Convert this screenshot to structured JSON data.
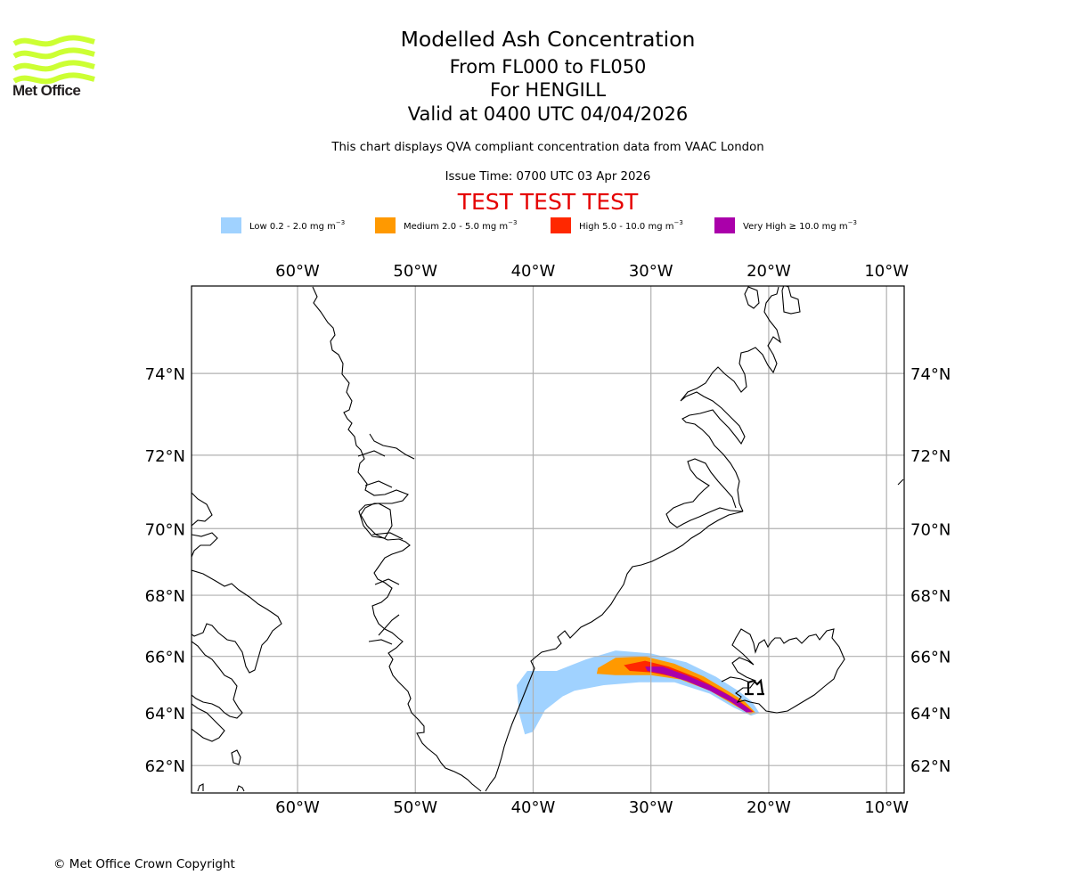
{
  "header": {
    "title": "Modelled Ash Concentration",
    "levels": "From FL000 to FL050",
    "volcano": "For HENGILL",
    "valid": "Valid at 0400 UTC 04/04/2026",
    "description": "This chart displays QVA compliant concentration data from VAAC London",
    "issue_time": "Issue Time: 0700 UTC 03 Apr 2026",
    "test_banner": "TEST TEST TEST"
  },
  "logo": {
    "text": "Met Office",
    "icon": "met-office-wave-logo",
    "color": "#ccff33"
  },
  "legend": [
    {
      "name": "Low",
      "label": "Low 0.2 - 2.0 mg m",
      "exp": "−3",
      "color": "#a0d2ff"
    },
    {
      "name": "Medium",
      "label": "Medium 2.0 - 5.0 mg m",
      "exp": "−3",
      "color": "#ff9900"
    },
    {
      "name": "High",
      "label": "High 5.0 - 10.0 mg m",
      "exp": "−3",
      "color": "#ff2800"
    },
    {
      "name": "Very High",
      "label": "Very High  ≥  10.0 mg m",
      "exp": "−3",
      "color": "#aa00aa"
    }
  ],
  "chart_data": {
    "type": "map",
    "projection": "latitude-longitude (Mercator-like)",
    "extent": {
      "lon": [
        -69,
        -8.5
      ],
      "lat": [
        60.9,
        75.9
      ]
    },
    "grid": true,
    "lon_ticks": [
      -60,
      -50,
      -40,
      -30,
      -20,
      -10
    ],
    "lon_tick_labels": [
      "60°W",
      "50°W",
      "40°W",
      "30°W",
      "20°W",
      "10°W"
    ],
    "lat_ticks": [
      62,
      64,
      66,
      68,
      70,
      72,
      74
    ],
    "lat_tick_labels": [
      "62°N",
      "64°N",
      "66°N",
      "68°N",
      "70°N",
      "72°N",
      "74°N"
    ],
    "volcano": {
      "name": "HENGILL",
      "lon": -21.3,
      "lat": 64.1,
      "icon": "volcano-marker-icon"
    },
    "ash_levels": [
      {
        "level": "Low",
        "color": "#a0d2ff",
        "polygon": [
          [
            -40.7,
            63.2
          ],
          [
            -41.2,
            64.0
          ],
          [
            -41.4,
            65.0
          ],
          [
            -40.5,
            65.5
          ],
          [
            -38.0,
            65.5
          ],
          [
            -35.5,
            65.9
          ],
          [
            -33.0,
            66.2
          ],
          [
            -30.0,
            66.1
          ],
          [
            -27.0,
            65.8
          ],
          [
            -24.5,
            65.3
          ],
          [
            -22.6,
            64.8
          ],
          [
            -21.4,
            64.4
          ],
          [
            -20.8,
            64.0
          ],
          [
            -21.5,
            63.9
          ],
          [
            -23.0,
            64.2
          ],
          [
            -25.0,
            64.7
          ],
          [
            -28.0,
            65.1
          ],
          [
            -31.0,
            65.1
          ],
          [
            -34.0,
            65.0
          ],
          [
            -36.5,
            64.8
          ],
          [
            -37.5,
            64.6
          ],
          [
            -39.0,
            64.1
          ],
          [
            -40.0,
            63.3
          ]
        ]
      },
      {
        "level": "Medium",
        "color": "#ff9900",
        "polygon": [
          [
            -34.5,
            65.6
          ],
          [
            -33.0,
            65.95
          ],
          [
            -30.5,
            66.0
          ],
          [
            -28.0,
            65.75
          ],
          [
            -25.5,
            65.3
          ],
          [
            -23.5,
            64.8
          ],
          [
            -22.0,
            64.4
          ],
          [
            -21.1,
            64.0
          ],
          [
            -21.6,
            63.95
          ],
          [
            -23.0,
            64.3
          ],
          [
            -25.0,
            64.8
          ],
          [
            -27.5,
            65.2
          ],
          [
            -30.0,
            65.35
          ],
          [
            -33.0,
            65.35
          ],
          [
            -34.6,
            65.4
          ]
        ]
      },
      {
        "level": "High",
        "color": "#ff2800",
        "polygon": [
          [
            -32.3,
            65.7
          ],
          [
            -30.5,
            65.85
          ],
          [
            -28.5,
            65.65
          ],
          [
            -26.0,
            65.25
          ],
          [
            -24.0,
            64.8
          ],
          [
            -22.4,
            64.4
          ],
          [
            -21.3,
            64.05
          ],
          [
            -21.7,
            63.98
          ],
          [
            -23.0,
            64.35
          ],
          [
            -25.0,
            64.85
          ],
          [
            -27.5,
            65.25
          ],
          [
            -30.0,
            65.45
          ],
          [
            -31.8,
            65.5
          ]
        ]
      },
      {
        "level": "Very High",
        "color": "#aa00aa",
        "polygon": [
          [
            -30.5,
            65.65
          ],
          [
            -29.0,
            65.65
          ],
          [
            -27.0,
            65.35
          ],
          [
            -25.0,
            65.0
          ],
          [
            -23.2,
            64.6
          ],
          [
            -22.0,
            64.25
          ],
          [
            -21.4,
            64.05
          ],
          [
            -21.9,
            64.02
          ],
          [
            -23.2,
            64.4
          ],
          [
            -25.0,
            64.8
          ],
          [
            -27.0,
            65.15
          ],
          [
            -29.0,
            65.4
          ],
          [
            -30.3,
            65.5
          ]
        ]
      }
    ]
  },
  "footer": {
    "copyright": "© Met Office Crown Copyright"
  }
}
